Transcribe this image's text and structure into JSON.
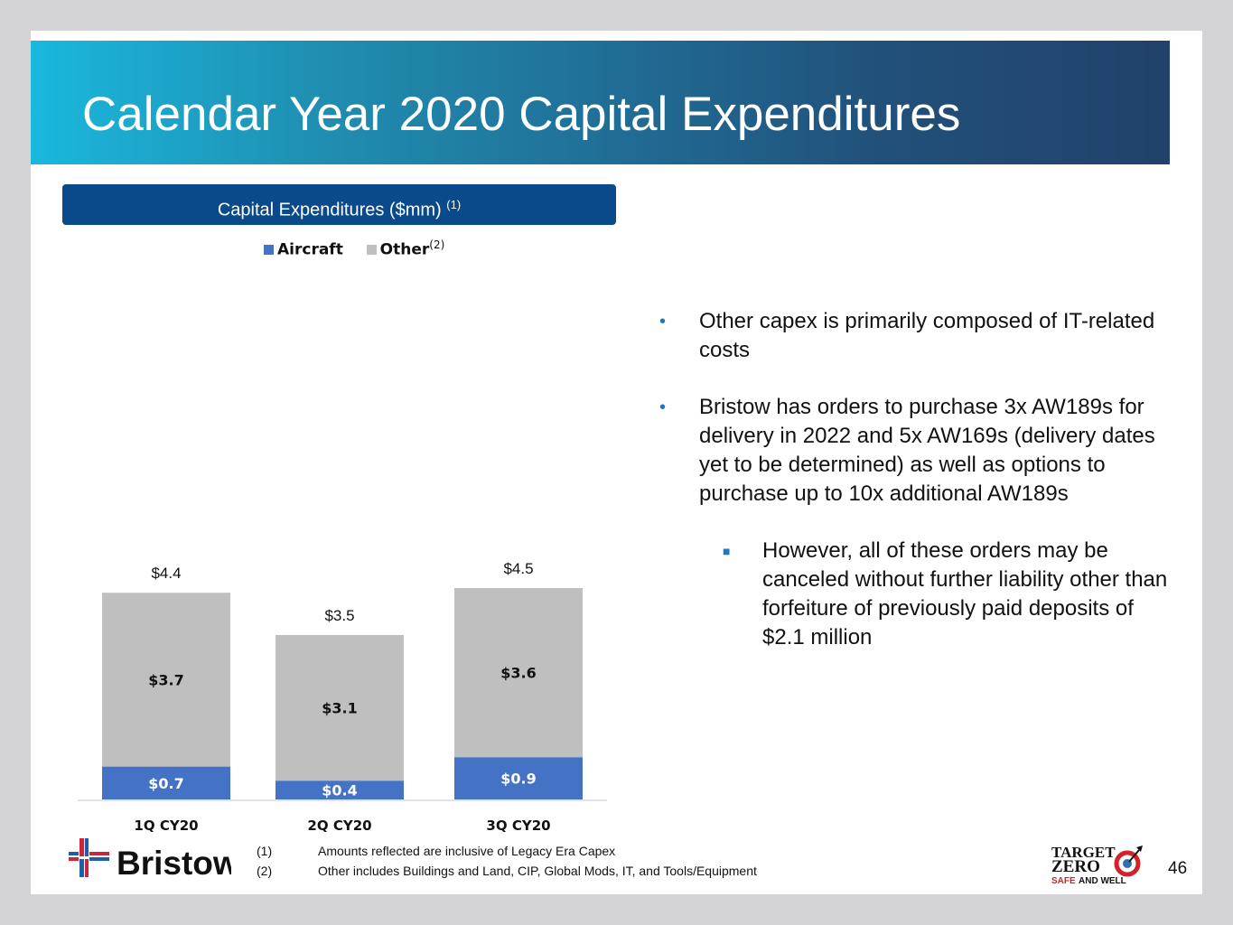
{
  "slide": {
    "title": "Calendar Year 2020 Capital Expenditures",
    "page_number": "46"
  },
  "chart_header": {
    "label": "Capital Expenditures ($mm)",
    "footnote_ref": "(1)"
  },
  "chart_data": {
    "type": "bar",
    "stacked": true,
    "title": "Capital Expenditures ($mm)",
    "categories": [
      "1Q CY20",
      "2Q CY20",
      "3Q CY20"
    ],
    "series": [
      {
        "name": "Aircraft",
        "color": "#4472c4",
        "values": [
          0.7,
          0.4,
          0.9
        ],
        "labels": [
          "$0.7",
          "$0.4",
          "$0.9"
        ]
      },
      {
        "name": "Other",
        "name_footnote": "(2)",
        "color": "#bfbfbf",
        "values": [
          3.7,
          3.1,
          3.6
        ],
        "labels": [
          "$3.7",
          "$3.1",
          "$3.6"
        ]
      }
    ],
    "totals": [
      4.4,
      3.5,
      4.5
    ],
    "total_labels": [
      "$4.4",
      "$3.5",
      "$4.5"
    ],
    "xlabel": "",
    "ylabel": "",
    "ylim": [
      0,
      4.6
    ],
    "grid": false,
    "legend": "top-center"
  },
  "bullets": [
    {
      "level": 1,
      "text": "Other capex is primarily composed of IT-related costs"
    },
    {
      "level": 1,
      "text": "Bristow has orders to purchase 3x AW189s for delivery in 2022 and 5x AW169s (delivery dates yet to be determined) as well as options to purchase up to 10x additional AW189s"
    },
    {
      "level": 2,
      "text": "However, all of these orders may be canceled without further liability other than forfeiture of previously paid deposits of $2.1 million"
    }
  ],
  "footnotes": [
    {
      "num": "(1)",
      "text": "Amounts reflected are inclusive of Legacy Era Capex"
    },
    {
      "num": "(2)",
      "text": "Other includes Buildings and Land, CIP, Global Mods, IT, and Tools/Equipment"
    }
  ],
  "logos": {
    "bristow": "Bristow",
    "target_zero_line1": "TARGET",
    "target_zero_line2": "ZERO",
    "target_zero_line3a": "SAFE",
    "target_zero_line3b": "AND WELL"
  },
  "colors": {
    "accent_blue": "#1a7bc4",
    "header_navy": "#0a4a8a",
    "aircraft": "#4472c4",
    "other": "#bfbfbf"
  }
}
